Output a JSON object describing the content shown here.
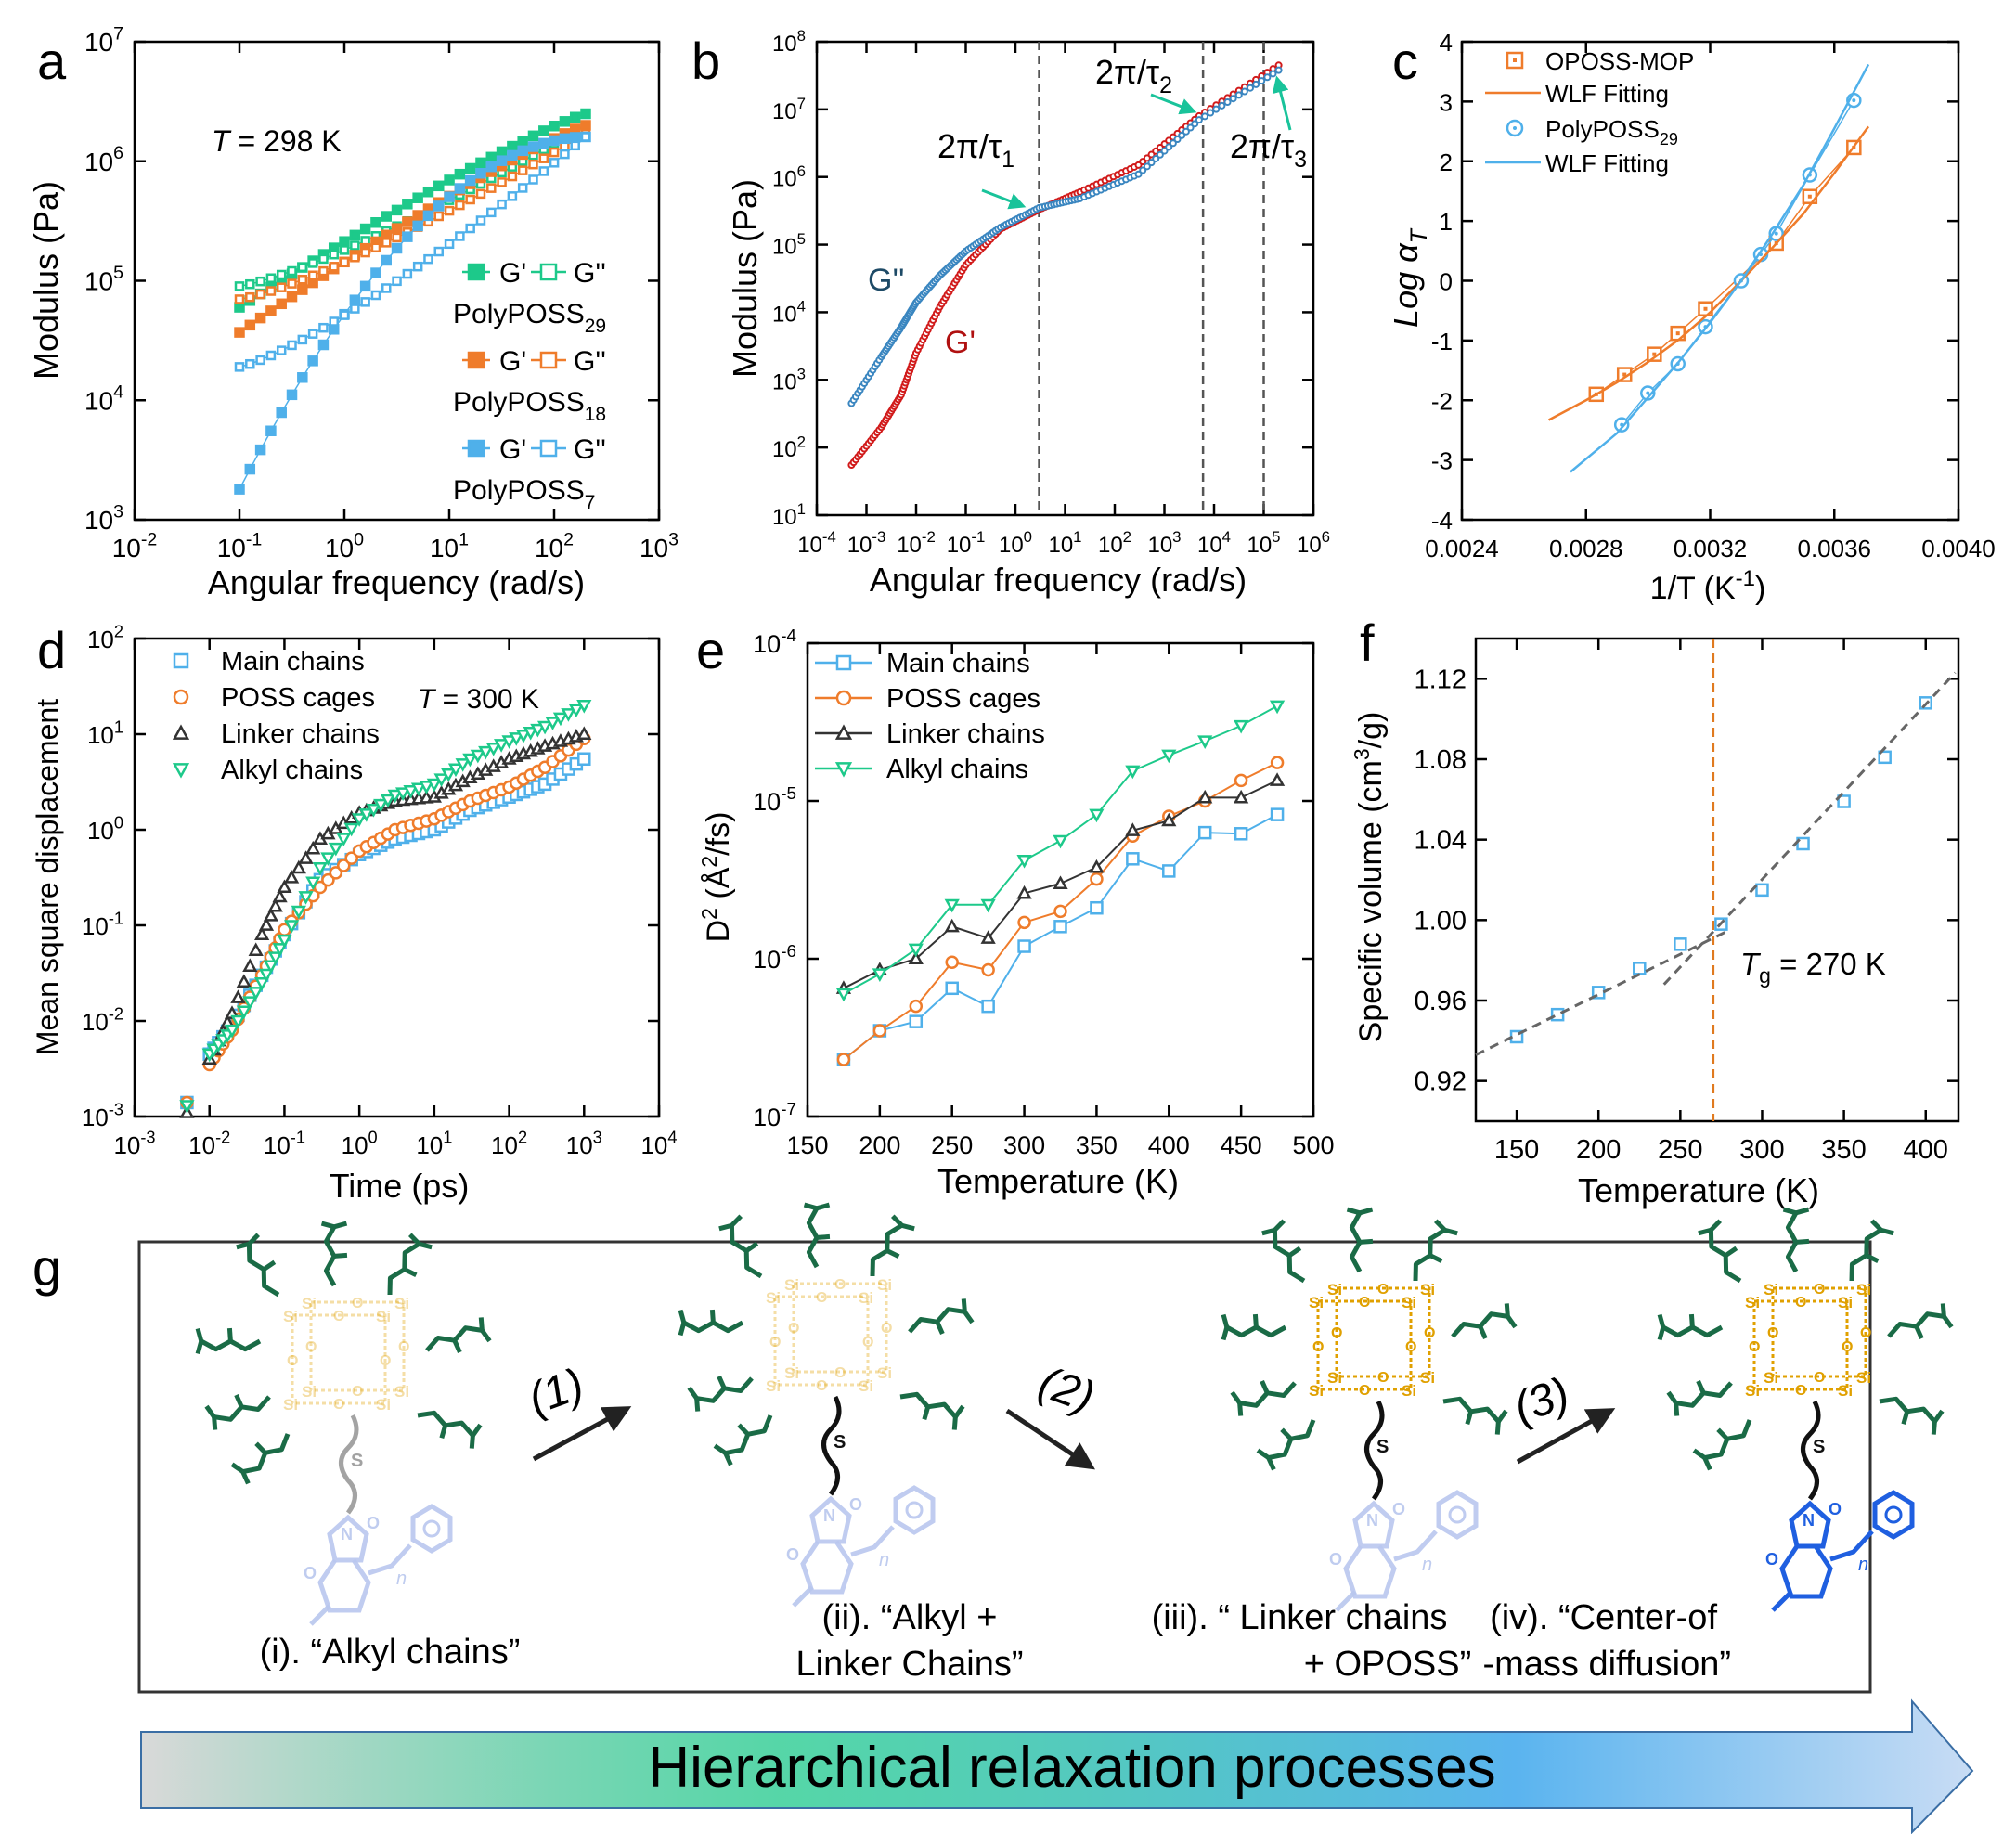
{
  "panel_labels": [
    "a",
    "b",
    "c",
    "d",
    "e",
    "f",
    "g"
  ],
  "colors": {
    "green": "#1dc98a",
    "orange": "#ef7c2b",
    "blue": "#4fb0ea",
    "b_gp": "#d11a1a",
    "b_gpp": "#3a86c0",
    "b_gp_text": "#b01010",
    "b_gpp_text": "#1d4a66",
    "arrow": "#19c39a",
    "dark_green": "#1a6b46",
    "gold": "#e0a000",
    "pale_gold": "#f0d9a8",
    "pale_blue": "#b9c7ee",
    "vivid_blue": "#1f5fe0",
    "grey_line": "#555555"
  },
  "chart_data": [
    {
      "panel": "a",
      "type": "scatter",
      "xlabel": "Angular frequency (rad/s)",
      "ylabel": "Modulus (Pa)",
      "xscale": "log",
      "yscale": "log",
      "xlim": [
        0.01,
        1000
      ],
      "ylim": [
        1000,
        10000000
      ],
      "x_ticks": [
        "10^-2",
        "10^-1",
        "10^0",
        "10^1",
        "10^2",
        "10^3"
      ],
      "y_ticks": [
        "10^3",
        "10^4",
        "10^5",
        "10^6",
        "10^7"
      ],
      "annotation": {
        "T_symbol": "T",
        "text": " = 298 K"
      },
      "legend": [
        {
          "series_label": "PolyPOSS",
          "sub": "29",
          "gp": "G'",
          "gpp": "G''",
          "color": "green"
        },
        {
          "series_label": "PolyPOSS",
          "sub": "18",
          "gp": "G'",
          "gpp": "G''",
          "color": "orange"
        },
        {
          "series_label": "PolyPOSS",
          "sub": "7",
          "gp": "G'",
          "gpp": "G''",
          "color": "blue"
        }
      ],
      "series": [
        {
          "name": "PolyPOSS29 G'",
          "color": "green",
          "fill": true,
          "w_start": 0.1,
          "w_end": 200,
          "v_start": 60000,
          "v_end": 2500000
        },
        {
          "name": "PolyPOSS29 G''",
          "color": "green",
          "fill": false,
          "w_start": 0.1,
          "w_end": 200,
          "v_start": 90000,
          "v_end": 2000000
        },
        {
          "name": "PolyPOSS18 G'",
          "color": "orange",
          "fill": true,
          "w_start": 0.1,
          "w_end": 200,
          "v_start": 37000,
          "v_end": 2000000
        },
        {
          "name": "PolyPOSS18 G''",
          "color": "orange",
          "fill": false,
          "w_start": 0.1,
          "w_end": 200,
          "v_start": 70000,
          "v_end": 1700000
        },
        {
          "name": "PolyPOSS7 G'",
          "color": "blue",
          "fill": true,
          "w_start": 0.1,
          "w_end": 200,
          "v_start": 1800,
          "v_end": 1600000
        },
        {
          "name": "PolyPOSS7 G''",
          "color": "blue",
          "fill": false,
          "w_start": 0.1,
          "w_end": 200,
          "v_start": 19000,
          "v_end": 1600000
        }
      ]
    },
    {
      "panel": "b",
      "type": "line",
      "xlabel": "Angular frequency (rad/s)",
      "ylabel": "Modulus (Pa)",
      "xscale": "log",
      "yscale": "log",
      "xlim": [
        0.0001,
        1000000
      ],
      "ylim": [
        10,
        100000000
      ],
      "x_ticks": [
        "10^-4",
        "10^-3",
        "10^-2",
        "10^-1",
        "10^0",
        "10^1",
        "10^2",
        "10^3",
        "10^4",
        "10^5",
        "10^6"
      ],
      "y_ticks": [
        "10^1",
        "10^2",
        "10^3",
        "10^4",
        "10^5",
        "10^6",
        "10^7",
        "10^8"
      ],
      "series_labels": [
        "G''",
        "G'"
      ],
      "series": [
        {
          "name": "G'",
          "color": "b_gp",
          "x": [
            0.0005,
            0.002,
            0.005,
            0.01,
            0.03,
            0.1,
            0.5,
            3,
            20,
            300,
            5000,
            200000
          ],
          "y": [
            55,
            200,
            600,
            2500,
            12000,
            50000,
            170000,
            330000,
            600000,
            1500000,
            8000000,
            45000000
          ]
        },
        {
          "name": "G''",
          "color": "b_gpp",
          "x": [
            0.0005,
            0.002,
            0.005,
            0.01,
            0.03,
            0.1,
            0.5,
            3,
            20,
            300,
            5000,
            200000
          ],
          "y": [
            450,
            2200,
            6000,
            14000,
            35000,
            80000,
            180000,
            350000,
            480000,
            1100000,
            7000000,
            38000000
          ]
        }
      ],
      "vlines": [
        3,
        6000,
        100000
      ],
      "annotations": [
        {
          "text": "2π/τ",
          "sub": "1"
        },
        {
          "text": "2π/τ",
          "sub": "2"
        },
        {
          "text": "2π/τ",
          "sub": "3"
        }
      ]
    },
    {
      "panel": "c",
      "type": "scatter",
      "xlabel": "1/T (K",
      "xlabel_sup": "-1",
      "xlabel_tail": ")",
      "ylabel": "Log α",
      "ylabel_sub": "T",
      "xlim": [
        0.0024,
        0.004
      ],
      "ylim": [
        -4,
        4
      ],
      "x_ticks": [
        "0.0024",
        "0.0028",
        "0.0032",
        "0.0036",
        "0.0040"
      ],
      "y_ticks": [
        "-4",
        "-3",
        "-2",
        "-1",
        "0",
        "1",
        "2",
        "3",
        "4"
      ],
      "legend": [
        "OPOSS-MOP",
        "WLF Fitting",
        "PolyPOSS",
        "WLF Fitting"
      ],
      "legend_sub": "29",
      "series": [
        {
          "name": "OPOSS-MOP",
          "color": "orange",
          "marker": "square",
          "x": [
            0.002833,
            0.002924,
            0.00302,
            0.003096,
            0.003185,
            0.003413,
            0.003521,
            0.003663
          ],
          "y": [
            -1.9,
            -1.57,
            -1.23,
            -0.88,
            -0.47,
            0.63,
            1.41,
            2.23
          ]
        },
        {
          "name": "PolyPOSS29",
          "color": "blue",
          "marker": "circle",
          "x": [
            0.002915,
            0.002999,
            0.003096,
            0.003185,
            0.0033,
            0.003363,
            0.003413,
            0.003521,
            0.003663
          ],
          "y": [
            -2.41,
            -1.88,
            -1.39,
            -0.77,
            0.0,
            0.44,
            0.79,
            1.77,
            3.02
          ]
        },
        {
          "name": "WLF Fitting",
          "color": "orange",
          "fit": true,
          "x": [
            0.00268,
            0.0028,
            0.0029,
            0.003,
            0.0031,
            0.0032,
            0.0033,
            0.0034,
            0.0035,
            0.0036,
            0.00371
          ],
          "y": [
            -2.33,
            -2.0,
            -1.7,
            -1.36,
            -0.98,
            -0.53,
            0.0,
            0.55,
            1.12,
            1.8,
            2.58
          ]
        },
        {
          "name": "WLF Fitting",
          "color": "blue",
          "fit": true,
          "x": [
            0.00275,
            0.0029,
            0.003,
            0.0031,
            0.0032,
            0.0033,
            0.0034,
            0.0035,
            0.0036,
            0.00371
          ],
          "y": [
            -3.2,
            -2.55,
            -1.95,
            -1.35,
            -0.7,
            0.0,
            0.78,
            1.6,
            2.55,
            3.62
          ]
        }
      ]
    },
    {
      "panel": "d",
      "type": "scatter",
      "xlabel": "Time (ps)",
      "ylabel": "Mean square displacement",
      "xscale": "log",
      "yscale": "log",
      "xlim": [
        0.001,
        10000
      ],
      "ylim": [
        0.001,
        100
      ],
      "x_ticks": [
        "10^-3",
        "10^-2",
        "10^-1",
        "10^0",
        "10^1",
        "10^2",
        "10^3",
        "10^4"
      ],
      "y_ticks": [
        "10^-3",
        "10^-2",
        "10^-1",
        "10^0",
        "10^1",
        "10^2"
      ],
      "annotation": {
        "T_symbol": "T",
        "text": " = 300 K"
      },
      "legend": [
        "Main chains",
        "POSS cages",
        "Linker chains",
        "Alkyl chains"
      ],
      "series": [
        {
          "name": "Main chains",
          "color": "blue",
          "marker": "square",
          "x": [
            0.005,
            0.01,
            0.02,
            0.05,
            0.1,
            0.3,
            1,
            3,
            10,
            30,
            100,
            300,
            1000
          ],
          "y": [
            0.0014,
            0.0045,
            0.009,
            0.03,
            0.08,
            0.3,
            0.55,
            0.8,
            1.0,
            1.6,
            2.2,
            3.0,
            5.5
          ]
        },
        {
          "name": "POSS cages",
          "color": "orange",
          "marker": "circle",
          "x": [
            0.005,
            0.01,
            0.02,
            0.05,
            0.1,
            0.3,
            1,
            3,
            10,
            30,
            100,
            300,
            1000
          ],
          "y": [
            0.0014,
            0.0035,
            0.008,
            0.03,
            0.09,
            0.25,
            0.6,
            1.0,
            1.3,
            2.0,
            2.8,
            4.5,
            9
          ]
        },
        {
          "name": "Linker chains",
          "color": "grey",
          "marker": "triangle",
          "x": [
            0.005,
            0.01,
            0.02,
            0.05,
            0.1,
            0.3,
            1,
            3,
            10,
            30,
            100,
            300,
            1000
          ],
          "y": [
            0.0011,
            0.004,
            0.012,
            0.08,
            0.25,
            0.8,
            1.5,
            2.0,
            2.2,
            3.5,
            5.5,
            7.5,
            10
          ]
        },
        {
          "name": "Alkyl chains",
          "color": "green",
          "marker": "triangle-down",
          "x": [
            0.005,
            0.01,
            0.02,
            0.05,
            0.1,
            0.3,
            1,
            3,
            10,
            30,
            100,
            300,
            1000
          ],
          "y": [
            0.0013,
            0.0045,
            0.008,
            0.025,
            0.07,
            0.4,
            1.3,
            2.3,
            3.0,
            5.5,
            8.5,
            12,
            20
          ]
        }
      ]
    },
    {
      "panel": "e",
      "type": "line",
      "xlabel": "Temperature (K)",
      "ylabel": "D",
      "ylabel_sup": "2",
      "ylabel_tail": " (Å",
      "ylabel_sup2": "2",
      "ylabel_end": "/fs)",
      "yscale": "log",
      "xlim": [
        150,
        500
      ],
      "ylim": [
        1e-07,
        0.0001
      ],
      "x_ticks": [
        "150",
        "200",
        "250",
        "300",
        "350",
        "400",
        "450",
        "500"
      ],
      "y_ticks": [
        "10^-7",
        "10^-6",
        "10^-5",
        "10^-4"
      ],
      "legend": [
        "Main chains",
        "POSS cages",
        "Linker chains",
        "Alkyl chains"
      ],
      "series": [
        {
          "name": "Main chains",
          "color": "blue",
          "marker": "square",
          "x": [
            175,
            200,
            225,
            250,
            275,
            300,
            325,
            350,
            375,
            400,
            425,
            450,
            475
          ],
          "y": [
            2.3e-07,
            3.5e-07,
            4e-07,
            6.5e-07,
            5e-07,
            1.2e-06,
            1.6e-06,
            2.1e-06,
            4.3e-06,
            3.6e-06,
            6.3e-06,
            6.2e-06,
            8.2e-06
          ]
        },
        {
          "name": "POSS cages",
          "color": "orange",
          "marker": "circle",
          "x": [
            175,
            200,
            225,
            250,
            275,
            300,
            325,
            350,
            375,
            400,
            425,
            450,
            475
          ],
          "y": [
            2.3e-07,
            3.5e-07,
            5e-07,
            9.5e-07,
            8.5e-07,
            1.7e-06,
            2e-06,
            3.2e-06,
            6e-06,
            8e-06,
            1e-05,
            1.35e-05,
            1.75e-05
          ]
        },
        {
          "name": "Linker chains",
          "color": "grey",
          "marker": "triangle",
          "x": [
            175,
            200,
            225,
            250,
            275,
            300,
            325,
            350,
            375,
            400,
            425,
            450,
            475
          ],
          "y": [
            6.5e-07,
            8.5e-07,
            1e-06,
            1.6e-06,
            1.35e-06,
            2.6e-06,
            3e-06,
            3.8e-06,
            6.5e-06,
            7.5e-06,
            1.05e-05,
            1.05e-05,
            1.35e-05
          ]
        },
        {
          "name": "Alkyl chains",
          "color": "green",
          "marker": "triangle-down",
          "x": [
            175,
            200,
            225,
            250,
            275,
            300,
            325,
            350,
            375,
            400,
            425,
            450,
            475
          ],
          "y": [
            6e-07,
            8e-07,
            1.15e-06,
            2.2e-06,
            2.2e-06,
            4.2e-06,
            5.6e-06,
            8.2e-06,
            1.55e-05,
            1.95e-05,
            2.4e-05,
            3e-05,
            4e-05
          ]
        }
      ]
    },
    {
      "panel": "f",
      "type": "scatter",
      "xlabel": "Temperature (K)",
      "ylabel": "Specific volume (cm",
      "ylabel_sup": "3",
      "ylabel_tail": "/g)",
      "xlim": [
        125,
        420
      ],
      "ylim": [
        0.9,
        1.14
      ],
      "x_ticks": [
        "150",
        "200",
        "250",
        "300",
        "350",
        "400"
      ],
      "y_ticks": [
        "0.92",
        "0.96",
        "1.00",
        "1.04",
        "1.08",
        "1.12"
      ],
      "annotation": {
        "T_symbol": "T",
        "T_sub": "g",
        "text": " = 270 K"
      },
      "tg": 270,
      "series": [
        {
          "name": "Specific volume",
          "color": "blue",
          "marker": "square",
          "x": [
            150,
            175,
            200,
            225,
            250,
            275,
            300,
            325,
            350,
            375,
            400
          ],
          "y": [
            0.942,
            0.953,
            0.964,
            0.976,
            0.988,
            0.998,
            1.015,
            1.038,
            1.059,
            1.081,
            1.108
          ]
        },
        {
          "name": "low-T fit",
          "color": "grey",
          "dashed": true,
          "x": [
            125,
            280
          ],
          "y": [
            0.933,
            0.995
          ]
        },
        {
          "name": "high-T fit",
          "color": "grey",
          "dashed": true,
          "x": [
            240,
            418
          ],
          "y": [
            0.968,
            1.123
          ]
        }
      ]
    }
  ],
  "panel_g": {
    "step_labels": [
      "(1)",
      "(2)",
      "(3)"
    ],
    "stage_captions": [
      [
        "(i). “Alkyl chains”"
      ],
      [
        "(ii). “Alkyl +",
        "Linker Chains”"
      ],
      [
        "(iii). “ Linker chains",
        "+ OPOSS”"
      ],
      [
        "(iv). “Center-of",
        "-mass diffusion”"
      ]
    ],
    "banner_text": "Hierarchical relaxation processes",
    "banner_colors": [
      "#d9d9d9",
      "#1dc98a",
      "#5ab4ef",
      "#c8dcf4"
    ],
    "structure_glyphs": {
      "si": "Si",
      "o": "O",
      "s": "S",
      "n": "N",
      "n_italic": "n"
    }
  }
}
